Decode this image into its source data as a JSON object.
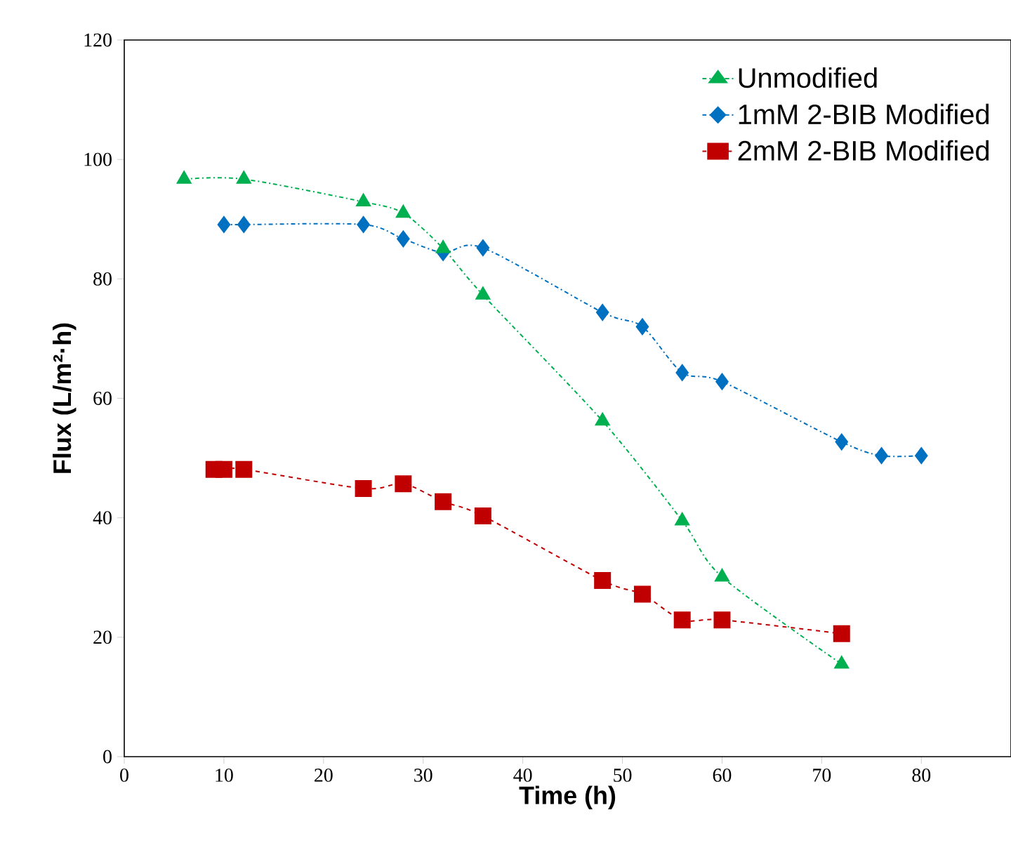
{
  "chart_data": {
    "type": "line",
    "xlabel": "Time (h)",
    "ylabel": "Flux (L/m²·h)",
    "xlim": [
      0,
      89
    ],
    "ylim": [
      0,
      120
    ],
    "xticks": [
      0,
      10,
      20,
      30,
      40,
      50,
      60,
      70,
      80
    ],
    "yticks": [
      0,
      20,
      40,
      60,
      80,
      100,
      120
    ],
    "grid": false,
    "legend": "top right",
    "series": [
      {
        "name": "Unmodified",
        "color": "#00b050",
        "marker": "triangle",
        "line_style": "dashdot",
        "x": [
          6,
          12,
          24,
          28,
          32,
          36,
          48,
          56,
          60,
          72
        ],
        "values": [
          96.7,
          96.7,
          92.9,
          91.0,
          85.1,
          77.3,
          56.2,
          39.5,
          30.1,
          15.5
        ]
      },
      {
        "name": "1mM 2-BIB Modified",
        "color": "#0070c0",
        "marker": "diamond",
        "line_style": "dashdot",
        "x": [
          10,
          12,
          24,
          28,
          32,
          36,
          48,
          52,
          56,
          60,
          72,
          76,
          80
        ],
        "values": [
          89.1,
          89.1,
          89.1,
          86.7,
          84.4,
          85.2,
          74.4,
          72.0,
          64.3,
          62.8,
          52.7,
          50.4,
          50.4
        ]
      },
      {
        "name": "2mM 2-BIB Modified",
        "color": "#c00000",
        "marker": "square",
        "line_style": "dashed",
        "x": [
          9,
          10,
          12,
          24,
          28,
          32,
          36,
          48,
          52,
          56,
          60,
          72
        ],
        "values": [
          48.1,
          48.1,
          48.1,
          44.9,
          45.7,
          42.7,
          40.3,
          29.5,
          27.2,
          22.9,
          22.9,
          20.6
        ]
      }
    ]
  }
}
